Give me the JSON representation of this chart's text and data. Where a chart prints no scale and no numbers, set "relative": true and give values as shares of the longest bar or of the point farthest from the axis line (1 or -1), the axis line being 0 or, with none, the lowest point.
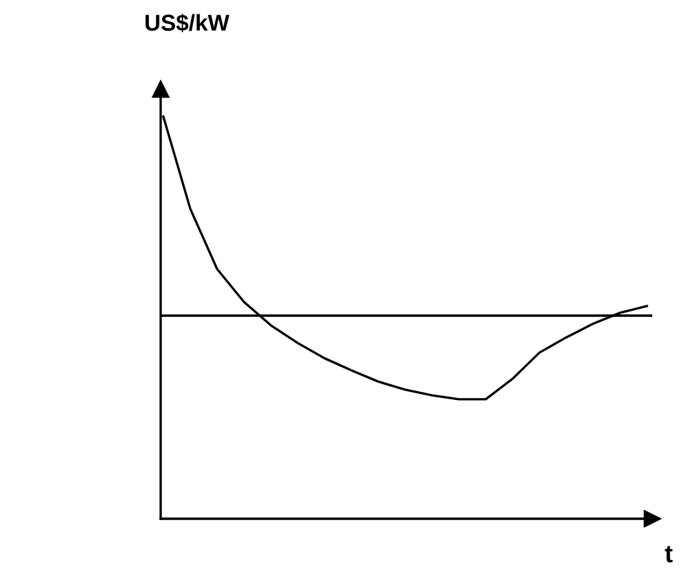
{
  "chart_data": {
    "type": "line",
    "relative": true,
    "ylabel": "US$/kW",
    "xlabel": "t",
    "categories": [
      null,
      null,
      null,
      null,
      null,
      null,
      null,
      null,
      null,
      null,
      null,
      null,
      null,
      null,
      null,
      null,
      null,
      null,
      null
    ],
    "series": [
      {
        "color": "#000000",
        "values": [
          1.0,
          0.771,
          0.621,
          0.539,
          0.481,
          0.437,
          0.399,
          0.369,
          0.341,
          0.321,
          0.307,
          0.297,
          0.297,
          0.348,
          0.413,
          0.451,
          0.485,
          0.512,
          0.529
        ]
      }
    ],
    "ref_lines": [
      {
        "axis": "y",
        "value": 0.505,
        "color": "#000000"
      }
    ],
    "legend": false,
    "marker": "none",
    "line_style": "solid"
  }
}
